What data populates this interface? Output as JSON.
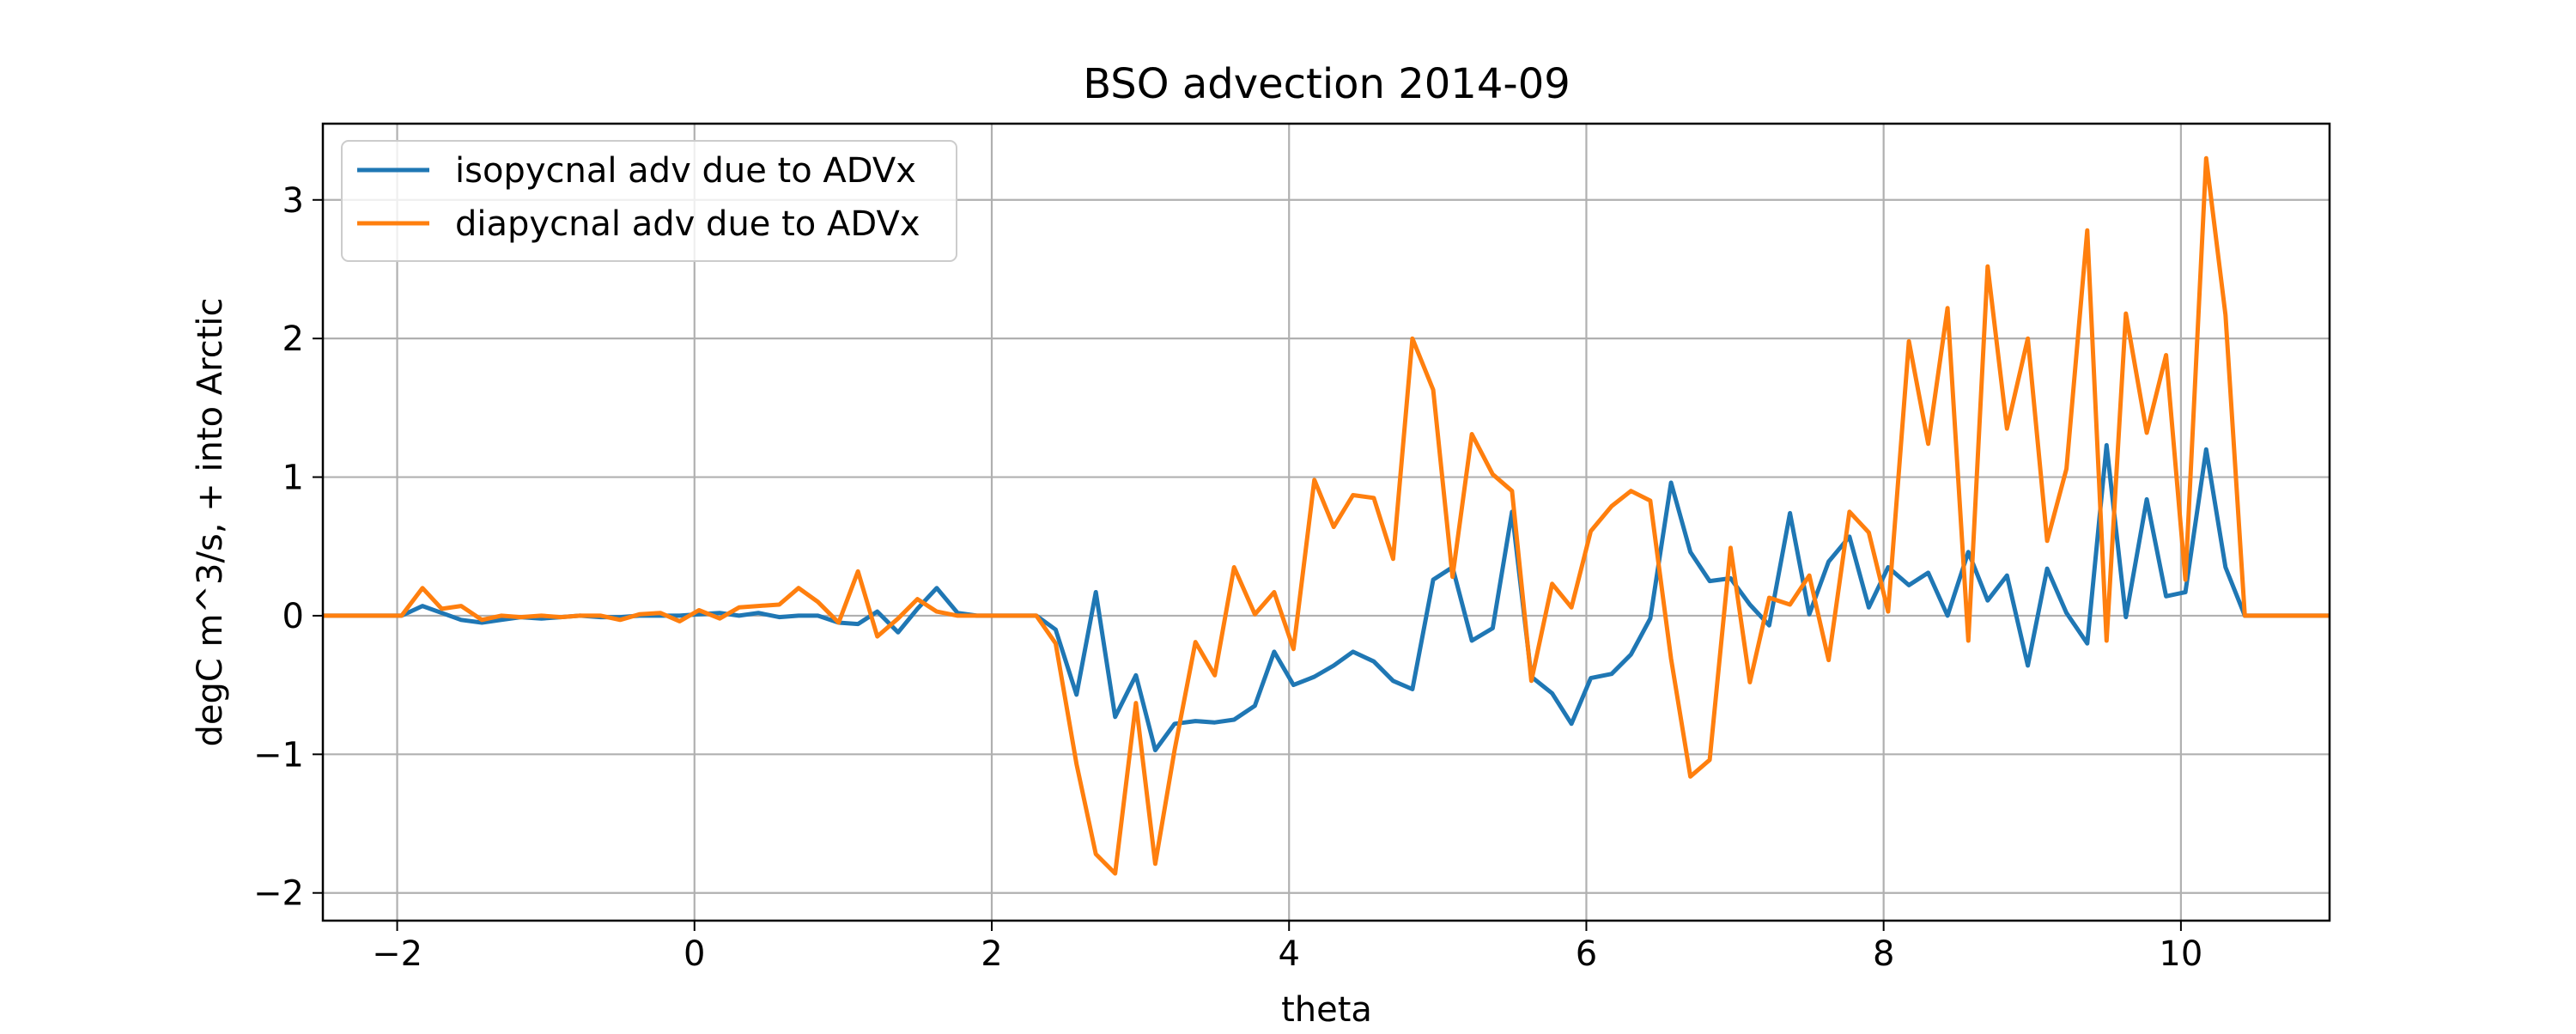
{
  "chart_data": {
    "type": "line",
    "title": "BSO advection 2014-09",
    "xlabel": "theta",
    "ylabel": "degC m^3/s, + into Arctic",
    "xlim": [
      -2.5,
      11.0
    ],
    "ylim": [
      -2.2,
      3.55
    ],
    "xticks": [
      -2,
      0,
      2,
      4,
      6,
      8,
      10
    ],
    "yticks": [
      -2,
      -1,
      0,
      1,
      2,
      3
    ],
    "grid": true,
    "legend_position": "upper-left",
    "x": [
      -2.5,
      -2.37,
      -2.23,
      -2.1,
      -1.97,
      -1.83,
      -1.7,
      -1.57,
      -1.43,
      -1.3,
      -1.17,
      -1.03,
      -0.9,
      -0.77,
      -0.63,
      -0.5,
      -0.37,
      -0.23,
      -0.1,
      0.03,
      0.17,
      0.3,
      0.43,
      0.57,
      0.7,
      0.83,
      0.97,
      1.1,
      1.23,
      1.37,
      1.5,
      1.63,
      1.77,
      1.9,
      2.03,
      2.17,
      2.3,
      2.43,
      2.57,
      2.7,
      2.83,
      2.97,
      3.1,
      3.23,
      3.37,
      3.5,
      3.63,
      3.77,
      3.9,
      4.03,
      4.17,
      4.3,
      4.43,
      4.57,
      4.7,
      4.83,
      4.97,
      5.1,
      5.23,
      5.37,
      5.5,
      5.63,
      5.77,
      5.9,
      6.03,
      6.17,
      6.3,
      6.43,
      6.57,
      6.7,
      6.83,
      6.97,
      7.1,
      7.23,
      7.37,
      7.5,
      7.63,
      7.77,
      7.9,
      8.03,
      8.17,
      8.3,
      8.43,
      8.57,
      8.7,
      8.83,
      8.97,
      9.1,
      9.23,
      9.37,
      9.5,
      9.63,
      9.77,
      9.9,
      10.03,
      10.17,
      10.3,
      10.43,
      10.57,
      10.7,
      10.83,
      11.0
    ],
    "series": [
      {
        "name": "isopycnal adv due to ADVx",
        "color": "#1f77b4",
        "values": [
          0,
          0,
          0,
          0,
          0,
          0.07,
          0.02,
          -0.03,
          -0.05,
          -0.03,
          -0.01,
          -0.02,
          -0.01,
          0,
          -0.01,
          -0.01,
          0,
          0,
          0,
          0.01,
          0.02,
          0,
          0.02,
          -0.01,
          0,
          0,
          -0.05,
          -0.06,
          0.03,
          -0.12,
          0.05,
          0.2,
          0.02,
          0,
          0,
          0,
          0,
          -0.1,
          -0.57,
          0.17,
          -0.73,
          -0.43,
          -0.97,
          -0.78,
          -0.76,
          -0.77,
          -0.75,
          -0.65,
          -0.26,
          -0.5,
          -0.44,
          -0.36,
          -0.26,
          -0.33,
          -0.47,
          -0.53,
          0.26,
          0.35,
          -0.18,
          -0.09,
          0.75,
          -0.44,
          -0.56,
          -0.78,
          -0.45,
          -0.42,
          -0.28,
          -0.02,
          0.96,
          0.46,
          0.25,
          0.27,
          0.08,
          -0.07,
          0.74,
          0.01,
          0.39,
          0.57,
          0.06,
          0.35,
          0.22,
          0.31,
          0,
          0.46,
          0.11,
          0.29,
          -0.36,
          0.34,
          0.02,
          -0.2,
          1.23,
          -0.01,
          0.84,
          0.14,
          0.17,
          1.2,
          0.35,
          0,
          0,
          0,
          0,
          0
        ]
      },
      {
        "name": "diapycnal adv due to ADVx",
        "color": "#ff7f0e",
        "values": [
          0,
          0,
          0,
          0,
          0,
          0.2,
          0.05,
          0.07,
          -0.03,
          0,
          -0.01,
          0,
          -0.01,
          0,
          0,
          -0.03,
          0.01,
          0.02,
          -0.04,
          0.04,
          -0.02,
          0.06,
          0.07,
          0.08,
          0.2,
          0.1,
          -0.05,
          0.32,
          -0.15,
          -0.02,
          0.12,
          0.03,
          0,
          0,
          0,
          0,
          0,
          -0.2,
          -1.07,
          -1.72,
          -1.86,
          -0.63,
          -1.79,
          -0.97,
          -0.19,
          -0.43,
          0.35,
          0.01,
          0.17,
          -0.24,
          0.98,
          0.64,
          0.87,
          0.85,
          0.41,
          2.0,
          1.63,
          0.28,
          1.31,
          1.02,
          0.9,
          -0.47,
          0.23,
          0.06,
          0.61,
          0.79,
          0.9,
          0.83,
          -0.31,
          -1.16,
          -1.04,
          0.49,
          -0.48,
          0.13,
          0.08,
          0.29,
          -0.32,
          0.75,
          0.6,
          0.03,
          1.98,
          1.24,
          2.22,
          -0.18,
          2.52,
          1.35,
          2.0,
          0.54,
          1.06,
          2.78,
          -0.18,
          2.18,
          1.32,
          1.88,
          0.26,
          3.3,
          2.17,
          0,
          0,
          0,
          0,
          0
        ]
      }
    ]
  }
}
